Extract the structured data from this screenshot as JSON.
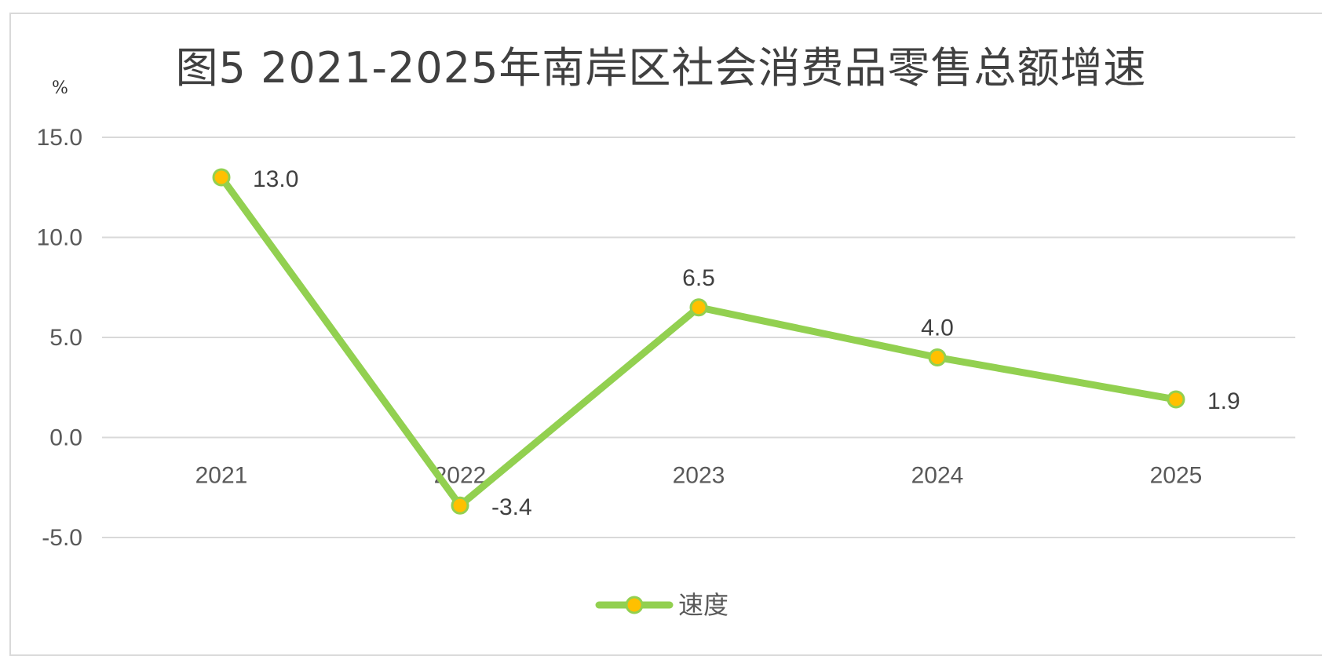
{
  "title": "图5  2021-2025年南岸区社会消费品零售总额增速",
  "unit_label": "%",
  "chart_data": {
    "type": "line",
    "title": "图5  2021-2025年南岸区社会消费品零售总额增速",
    "ylabel": "%",
    "xlabel": "",
    "categories": [
      "2021",
      "2022",
      "2023",
      "2024",
      "2025"
    ],
    "series": [
      {
        "name": "速度",
        "values": [
          13.0,
          -3.4,
          6.5,
          4.0,
          1.9
        ]
      }
    ],
    "data_labels": [
      "13.0",
      "-3.4",
      "6.5",
      "4.0",
      "1.9"
    ],
    "yticks": [
      "15.0",
      "10.0",
      "5.0",
      "0.0",
      "-5.0"
    ],
    "ylim": [
      -5,
      15
    ],
    "grid": true,
    "legend": "bottom-center",
    "colors": {
      "line": "#92d050",
      "marker_fill": "#ffc000",
      "marker_edge": "#92d050",
      "grid": "#d9d9d9"
    }
  }
}
